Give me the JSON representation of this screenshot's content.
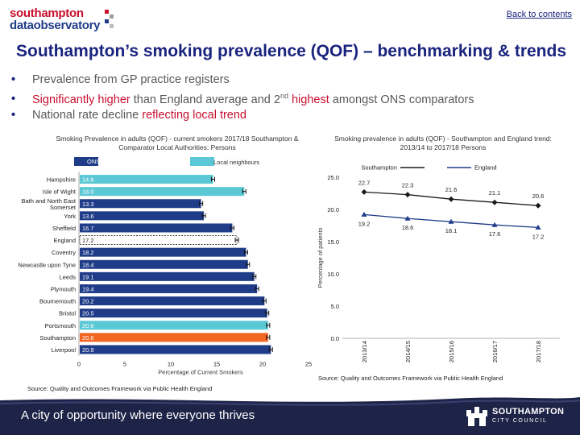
{
  "header": {
    "logo_line1": "southampton",
    "logo_line2": "dataobservatory",
    "back_link": "Back to contents"
  },
  "title": "Southampton’s smoking prevalence (QOF) – benchmarking & trends",
  "bullets": {
    "b1": "Prevalence from GP practice registers",
    "b2_hl": "Significantly higher",
    "b2_mid": " than England average and 2",
    "b2_sup": "nd",
    "b2_hl2": " highest",
    "b2_end": " amongst ONS comparators",
    "b3_pre": "National rate decline ",
    "b3_hl": "reflecting local trend"
  },
  "chart_data": [
    {
      "type": "bar",
      "orientation": "horizontal",
      "title": "Smoking Prevalence in adults (QOF) - current smokers 2017/18 Southampton & Comparator Local Authorities: Persons",
      "xlabel": "Percentage of Current Smokers",
      "xlim": [
        0,
        25
      ],
      "xticks": [
        "0",
        "5",
        "10",
        "15",
        "20",
        "25"
      ],
      "legend": [
        {
          "label": "ONS statistical neighbours",
          "color": "#1f3c88"
        },
        {
          "label": "Local neighbours",
          "color": "#5bc8d5"
        }
      ],
      "categories": [
        "Hampshire",
        "Isle of Wight",
        "Bath and North East Somerset",
        "York",
        "Sheffield",
        "England",
        "Coventry",
        "Newcastle upon Tyne",
        "Leeds",
        "Plymouth",
        "Bournemouth",
        "Bristol",
        "Portsmouth",
        "Southampton",
        "Liverpool"
      ],
      "values": [
        14.6,
        18.0,
        13.3,
        13.6,
        16.7,
        17.2,
        18.2,
        18.4,
        19.1,
        19.4,
        20.2,
        20.5,
        20.6,
        20.6,
        20.9
      ],
      "value_labels": [
        "14.6",
        "18.0",
        "13.3",
        "13.6",
        "16.7",
        "17.2",
        "18.2",
        "18.4",
        "19.1",
        "19.4",
        "20.2",
        "20.5",
        "20.6",
        "20.6",
        "20.9"
      ],
      "groups": [
        "local",
        "local",
        "ons",
        "ons",
        "ons",
        "england",
        "ons",
        "ons",
        "ons",
        "ons",
        "ons",
        "ons",
        "local",
        "southampton",
        "ons"
      ],
      "colors": {
        "ons": "#1f3c88",
        "local": "#5bc8d5",
        "england": "#ffffff",
        "southampton": "#f26522"
      },
      "error_bars": true,
      "source": "Source: Quality and Outcomes Framework via Public Health England"
    },
    {
      "type": "line",
      "title": "Smoking prevalence in adults (QOF) - Southampton and England trend: 2013/14 to 2017/18 Persons",
      "ylabel": "Percentage of patients",
      "ylim": [
        0,
        25
      ],
      "yticks": [
        "0.0",
        "5.0",
        "10.0",
        "15.0",
        "20.0",
        "25.0"
      ],
      "categories": [
        "2013/14",
        "2014/15",
        "2015/16",
        "2016/17",
        "2017/18"
      ],
      "series": [
        {
          "name": "Southampton",
          "values": [
            22.7,
            22.3,
            21.6,
            21.1,
            20.6
          ],
          "labels": [
            "22.7",
            "22.3",
            "21.6",
            "21.1",
            "20.6"
          ],
          "color": "#1a1a1a",
          "marker": "diamond"
        },
        {
          "name": "England",
          "values": [
            19.2,
            18.6,
            18.1,
            17.6,
            17.2
          ],
          "labels": [
            "19.2",
            "18.6",
            "18.1",
            "17.6",
            "17.2"
          ],
          "color": "#1f3c88",
          "marker": "triangle"
        }
      ],
      "source": "Source: Quality and Outcomes Framework via Public Health England"
    }
  ],
  "footer": {
    "tagline": "A city of opportunity where everyone thrives",
    "council_line1": "SOUTHAMPTON",
    "council_line2": "CITY COUNCIL"
  }
}
